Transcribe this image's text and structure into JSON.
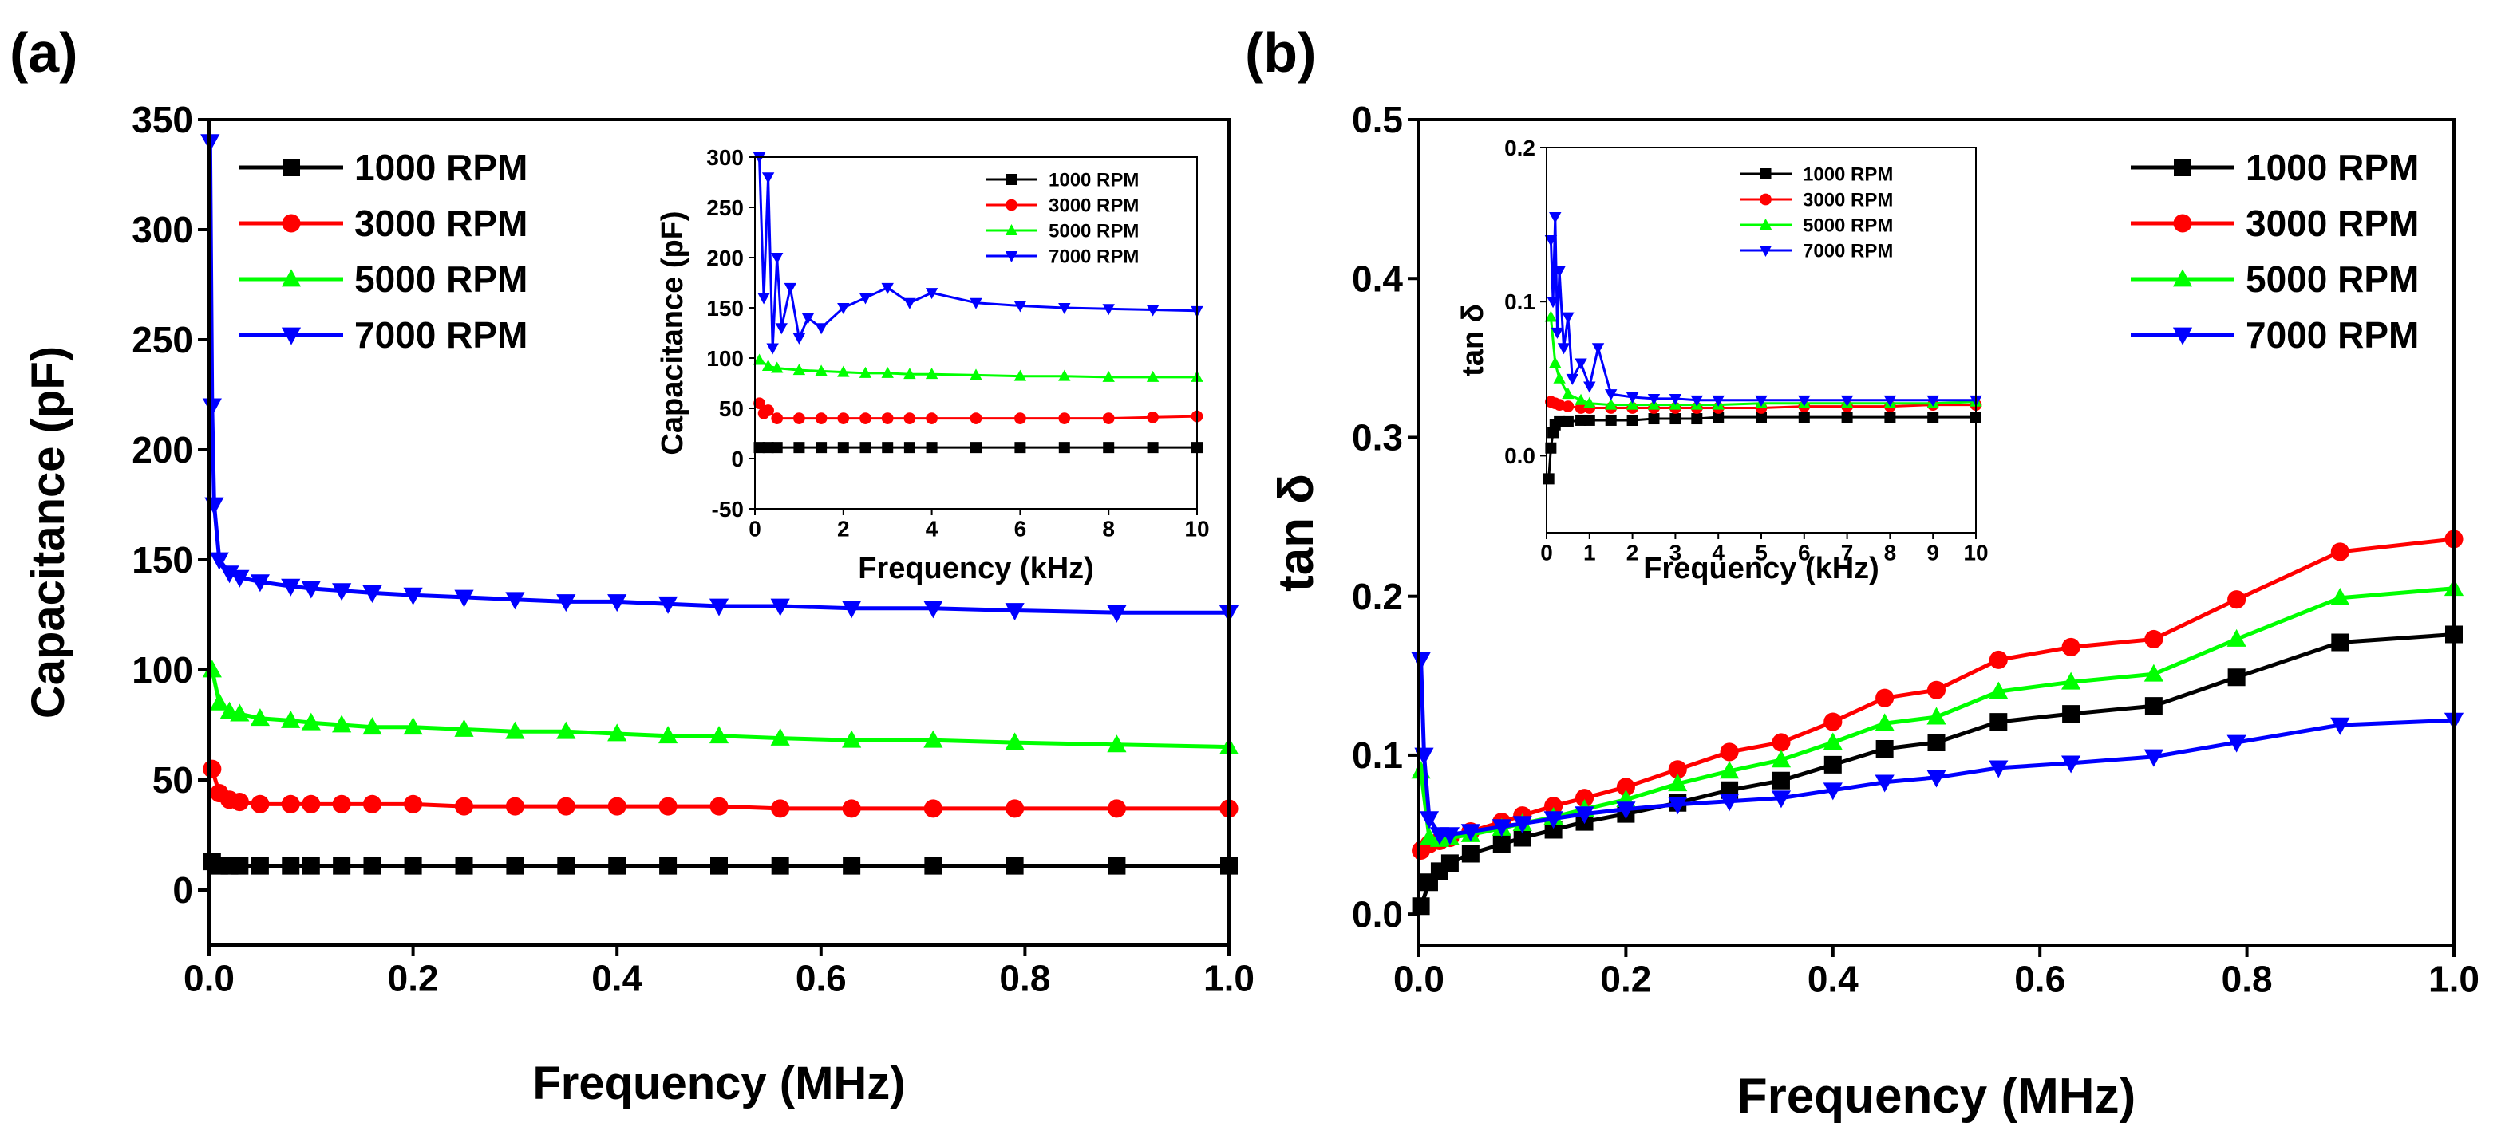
{
  "panels": {
    "a": {
      "label": "(a)"
    },
    "b": {
      "label": "(b)"
    }
  },
  "colors": {
    "s1000": "#000000",
    "s3000": "#ff0000",
    "s5000": "#00ff00",
    "s7000": "#0000ff"
  },
  "chart_data": [
    {
      "id": "a-main",
      "type": "line",
      "xlabel": "Frequency (MHz)",
      "ylabel": "Capacitance (pF)",
      "xlim": [
        0,
        1.0
      ],
      "ylim": [
        -25,
        350
      ],
      "xticks": [
        "0.0",
        "0.2",
        "0.4",
        "0.6",
        "0.8",
        "1.0"
      ],
      "yticks": [
        "0",
        "50",
        "100",
        "150",
        "200",
        "250",
        "300",
        "350"
      ],
      "legend": "top-left",
      "series": [
        {
          "name": "1000 RPM",
          "color": "#000000",
          "marker": "square",
          "x": [
            0.003,
            0.01,
            0.02,
            0.03,
            0.05,
            0.08,
            0.1,
            0.13,
            0.16,
            0.2,
            0.25,
            0.3,
            0.35,
            0.4,
            0.45,
            0.5,
            0.56,
            0.63,
            0.71,
            0.79,
            0.89,
            1.0
          ],
          "y": [
            13,
            11,
            11,
            11,
            11,
            11,
            11,
            11,
            11,
            11,
            11,
            11,
            11,
            11,
            11,
            11,
            11,
            11,
            11,
            11,
            11,
            11
          ]
        },
        {
          "name": "3000 RPM",
          "color": "#ff0000",
          "marker": "circle",
          "x": [
            0.003,
            0.01,
            0.02,
            0.03,
            0.05,
            0.08,
            0.1,
            0.13,
            0.16,
            0.2,
            0.25,
            0.3,
            0.35,
            0.4,
            0.45,
            0.5,
            0.56,
            0.63,
            0.71,
            0.79,
            0.89,
            1.0
          ],
          "y": [
            55,
            44,
            41,
            40,
            39,
            39,
            39,
            39,
            39,
            39,
            38,
            38,
            38,
            38,
            38,
            38,
            37,
            37,
            37,
            37,
            37,
            37
          ]
        },
        {
          "name": "5000 RPM",
          "color": "#00ff00",
          "marker": "triangle-up",
          "x": [
            0.003,
            0.01,
            0.02,
            0.03,
            0.05,
            0.08,
            0.1,
            0.13,
            0.16,
            0.2,
            0.25,
            0.3,
            0.35,
            0.4,
            0.45,
            0.5,
            0.56,
            0.63,
            0.71,
            0.79,
            0.89,
            1.0
          ],
          "y": [
            100,
            85,
            81,
            80,
            78,
            77,
            76,
            75,
            74,
            74,
            73,
            72,
            72,
            71,
            70,
            70,
            69,
            68,
            68,
            67,
            66,
            65
          ]
        },
        {
          "name": "7000 RPM",
          "color": "#0000ff",
          "marker": "triangle-down",
          "x": [
            0.001,
            0.003,
            0.005,
            0.01,
            0.02,
            0.03,
            0.05,
            0.08,
            0.1,
            0.13,
            0.16,
            0.2,
            0.25,
            0.3,
            0.35,
            0.4,
            0.45,
            0.5,
            0.56,
            0.63,
            0.71,
            0.79,
            0.89,
            1.0
          ],
          "y": [
            340,
            220,
            175,
            150,
            144,
            142,
            140,
            138,
            137,
            136,
            135,
            134,
            133,
            132,
            131,
            131,
            130,
            129,
            129,
            128,
            128,
            127,
            126,
            126
          ]
        }
      ]
    },
    {
      "id": "a-inset",
      "type": "line",
      "xlabel": "Frequency (kHz)",
      "ylabel": "Capacitance (pF)",
      "xlim": [
        0,
        10
      ],
      "ylim": [
        -50,
        300
      ],
      "xticks": [
        "0",
        "2",
        "4",
        "6",
        "8",
        "10"
      ],
      "yticks": [
        "-50",
        "0",
        "50",
        "100",
        "150",
        "200",
        "250",
        "300"
      ],
      "legend": "top-right",
      "series": [
        {
          "name": "1000 RPM",
          "color": "#000000",
          "marker": "square",
          "x": [
            0.1,
            0.3,
            0.5,
            1,
            1.5,
            2,
            2.5,
            3,
            3.5,
            4,
            5,
            6,
            7,
            8,
            9,
            10
          ],
          "y": [
            11,
            11,
            11,
            11,
            11,
            11,
            11,
            11,
            11,
            11,
            11,
            11,
            11,
            11,
            11,
            11
          ]
        },
        {
          "name": "3000 RPM",
          "color": "#ff0000",
          "marker": "circle",
          "x": [
            0.1,
            0.2,
            0.3,
            0.5,
            1,
            1.5,
            2,
            2.5,
            3,
            3.5,
            4,
            5,
            6,
            7,
            8,
            9,
            10
          ],
          "y": [
            55,
            45,
            48,
            40,
            40,
            40,
            40,
            40,
            40,
            40,
            40,
            40,
            40,
            40,
            40,
            41,
            42
          ]
        },
        {
          "name": "5000 RPM",
          "color": "#00ff00",
          "marker": "triangle-up",
          "x": [
            0.1,
            0.3,
            0.5,
            1,
            1.5,
            2,
            2.5,
            3,
            3.5,
            4,
            5,
            6,
            7,
            8,
            9,
            10
          ],
          "y": [
            98,
            92,
            90,
            88,
            87,
            86,
            85,
            85,
            84,
            84,
            83,
            82,
            82,
            81,
            81,
            81
          ]
        },
        {
          "name": "7000 RPM",
          "color": "#0000ff",
          "marker": "triangle-down",
          "x": [
            0.1,
            0.2,
            0.3,
            0.4,
            0.5,
            0.6,
            0.8,
            1.0,
            1.2,
            1.5,
            2.0,
            2.5,
            3.0,
            3.5,
            4.0,
            5.0,
            6.0,
            7.0,
            8.0,
            9.0,
            10.0
          ],
          "y": [
            300,
            160,
            280,
            110,
            200,
            130,
            170,
            120,
            140,
            130,
            150,
            160,
            170,
            155,
            165,
            155,
            152,
            150,
            149,
            148,
            147
          ]
        }
      ]
    },
    {
      "id": "b-main",
      "type": "line",
      "xlabel": "Frequency (MHz)",
      "ylabel": "tan δ",
      "xlim": [
        0,
        1.0
      ],
      "ylim": [
        -0.02,
        0.5
      ],
      "xticks": [
        "0.0",
        "0.2",
        "0.4",
        "0.6",
        "0.8",
        "1.0"
      ],
      "yticks": [
        "0.0",
        "0.1",
        "0.2",
        "0.3",
        "0.4",
        "0.5"
      ],
      "legend": "top-right",
      "series": [
        {
          "name": "1000 RPM",
          "color": "#000000",
          "marker": "square",
          "x": [
            0.002,
            0.01,
            0.02,
            0.03,
            0.05,
            0.08,
            0.1,
            0.13,
            0.16,
            0.2,
            0.25,
            0.3,
            0.35,
            0.4,
            0.45,
            0.5,
            0.56,
            0.63,
            0.71,
            0.79,
            0.89,
            1.0
          ],
          "y": [
            0.005,
            0.02,
            0.027,
            0.032,
            0.038,
            0.044,
            0.048,
            0.053,
            0.058,
            0.063,
            0.07,
            0.078,
            0.084,
            0.094,
            0.104,
            0.108,
            0.121,
            0.126,
            0.131,
            0.149,
            0.171,
            0.176
          ]
        },
        {
          "name": "3000 RPM",
          "color": "#ff0000",
          "marker": "circle",
          "x": [
            0.002,
            0.01,
            0.02,
            0.03,
            0.05,
            0.08,
            0.1,
            0.13,
            0.16,
            0.2,
            0.25,
            0.3,
            0.35,
            0.4,
            0.45,
            0.5,
            0.56,
            0.63,
            0.71,
            0.79,
            0.89,
            1.0
          ],
          "y": [
            0.04,
            0.044,
            0.046,
            0.048,
            0.052,
            0.058,
            0.062,
            0.068,
            0.073,
            0.08,
            0.091,
            0.102,
            0.108,
            0.121,
            0.136,
            0.141,
            0.16,
            0.168,
            0.173,
            0.198,
            0.228,
            0.236
          ]
        },
        {
          "name": "5000 RPM",
          "color": "#00ff00",
          "marker": "triangle-up",
          "x": [
            0.002,
            0.01,
            0.02,
            0.03,
            0.05,
            0.08,
            0.1,
            0.13,
            0.16,
            0.2,
            0.25,
            0.3,
            0.35,
            0.4,
            0.45,
            0.5,
            0.56,
            0.63,
            0.71,
            0.79,
            0.89,
            1.0
          ],
          "y": [
            0.09,
            0.048,
            0.047,
            0.048,
            0.05,
            0.054,
            0.057,
            0.061,
            0.066,
            0.072,
            0.082,
            0.09,
            0.097,
            0.108,
            0.12,
            0.124,
            0.14,
            0.146,
            0.151,
            0.173,
            0.199,
            0.205
          ]
        },
        {
          "name": "7000 RPM",
          "color": "#0000ff",
          "marker": "triangle-down",
          "x": [
            0.002,
            0.005,
            0.01,
            0.02,
            0.03,
            0.05,
            0.08,
            0.1,
            0.13,
            0.16,
            0.2,
            0.25,
            0.3,
            0.35,
            0.4,
            0.45,
            0.5,
            0.56,
            0.63,
            0.71,
            0.79,
            0.89,
            1.0
          ],
          "y": [
            0.16,
            0.1,
            0.06,
            0.05,
            0.05,
            0.052,
            0.055,
            0.057,
            0.06,
            0.063,
            0.066,
            0.069,
            0.071,
            0.073,
            0.078,
            0.083,
            0.086,
            0.092,
            0.095,
            0.099,
            0.108,
            0.119,
            0.122
          ]
        }
      ]
    },
    {
      "id": "b-inset",
      "type": "line",
      "xlabel": "Frequency (kHz)",
      "ylabel": "tan δ",
      "xlim": [
        0,
        10
      ],
      "ylim": [
        -0.05,
        0.2
      ],
      "xticks": [
        "0",
        "1",
        "2",
        "3",
        "4",
        "5",
        "6",
        "7",
        "8",
        "9",
        "10"
      ],
      "yticks": [
        "0.0",
        "0.1",
        "0.2"
      ],
      "legend": "top-right",
      "series": [
        {
          "name": "1000 RPM",
          "color": "#000000",
          "marker": "square",
          "x": [
            0.05,
            0.1,
            0.15,
            0.2,
            0.3,
            0.5,
            0.8,
            1,
            1.5,
            2,
            2.5,
            3,
            3.5,
            4,
            5,
            6,
            7,
            8,
            9,
            10
          ],
          "y": [
            -0.015,
            0.005,
            0.015,
            0.02,
            0.022,
            0.022,
            0.023,
            0.023,
            0.023,
            0.023,
            0.024,
            0.024,
            0.024,
            0.025,
            0.025,
            0.025,
            0.025,
            0.025,
            0.025,
            0.025
          ]
        },
        {
          "name": "3000 RPM",
          "color": "#ff0000",
          "marker": "circle",
          "x": [
            0.1,
            0.2,
            0.3,
            0.5,
            0.8,
            1,
            1.5,
            2,
            2.5,
            3,
            3.5,
            4,
            5,
            6,
            7,
            8,
            9,
            10
          ],
          "y": [
            0.035,
            0.034,
            0.033,
            0.032,
            0.031,
            0.031,
            0.031,
            0.031,
            0.031,
            0.031,
            0.031,
            0.031,
            0.031,
            0.032,
            0.032,
            0.032,
            0.033,
            0.033
          ]
        },
        {
          "name": "5000 RPM",
          "color": "#00ff00",
          "marker": "triangle-up",
          "x": [
            0.1,
            0.2,
            0.3,
            0.5,
            0.8,
            1,
            1.5,
            2,
            2.5,
            3,
            3.5,
            4,
            5,
            6,
            7,
            8,
            9,
            10
          ],
          "y": [
            0.09,
            0.06,
            0.05,
            0.04,
            0.036,
            0.034,
            0.033,
            0.033,
            0.033,
            0.033,
            0.033,
            0.033,
            0.034,
            0.034,
            0.034,
            0.034,
            0.034,
            0.035
          ]
        },
        {
          "name": "7000 RPM",
          "color": "#0000ff",
          "marker": "triangle-down",
          "x": [
            0.1,
            0.15,
            0.2,
            0.25,
            0.3,
            0.4,
            0.5,
            0.6,
            0.8,
            1.0,
            1.2,
            1.5,
            2,
            2.5,
            3,
            3.5,
            4,
            5,
            6,
            7,
            8,
            9,
            10
          ],
          "y": [
            0.14,
            0.1,
            0.155,
            0.08,
            0.12,
            0.07,
            0.09,
            0.05,
            0.06,
            0.045,
            0.07,
            0.04,
            0.038,
            0.037,
            0.037,
            0.036,
            0.036,
            0.036,
            0.036,
            0.036,
            0.036,
            0.036,
            0.036
          ]
        }
      ]
    }
  ]
}
